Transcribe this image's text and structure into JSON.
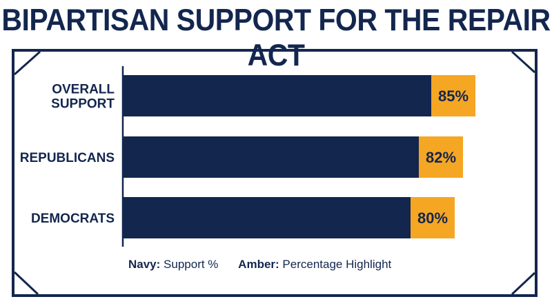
{
  "title": "BIPARTISAN SUPPORT FOR THE REPAIR ACT",
  "chart_data": {
    "type": "bar",
    "orientation": "horizontal",
    "categories": [
      "OVERALL SUPPORT",
      "REPUBLICANS",
      "DEMOCRATS"
    ],
    "values": [
      85,
      82,
      80
    ],
    "value_labels": [
      "85%",
      "82%",
      "80%"
    ],
    "colors": {
      "bar": "#13264e",
      "highlight": "#f5a623"
    }
  },
  "legend": [
    {
      "key": "Navy:",
      "text": "Support %"
    },
    {
      "key": "Amber:",
      "text": "Percentage Highlight"
    }
  ]
}
